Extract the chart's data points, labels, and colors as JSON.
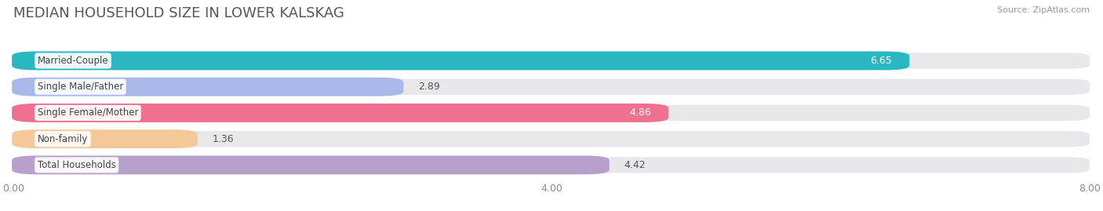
{
  "title": "MEDIAN HOUSEHOLD SIZE IN LOWER KALSKAG",
  "source": "Source: ZipAtlas.com",
  "categories": [
    "Married-Couple",
    "Single Male/Father",
    "Single Female/Mother",
    "Non-family",
    "Total Households"
  ],
  "values": [
    6.65,
    2.89,
    4.86,
    1.36,
    4.42
  ],
  "bar_colors": [
    "#29b8c2",
    "#a8b8e8",
    "#f07090",
    "#f5c89a",
    "#b8a0cc"
  ],
  "value_inside": [
    true,
    false,
    true,
    false,
    false
  ],
  "xmax": 8.0,
  "xticks": [
    0.0,
    4.0,
    8.0
  ],
  "xtick_labels": [
    "0.00",
    "4.00",
    "8.00"
  ],
  "title_fontsize": 13,
  "source_fontsize": 8,
  "bar_label_fontsize": 9,
  "category_fontsize": 8.5,
  "background_color": "#ffffff",
  "bar_bg_color": "#e8e8ec",
  "row_bg_color": "#f0f0f4",
  "white_gap": "#ffffff"
}
